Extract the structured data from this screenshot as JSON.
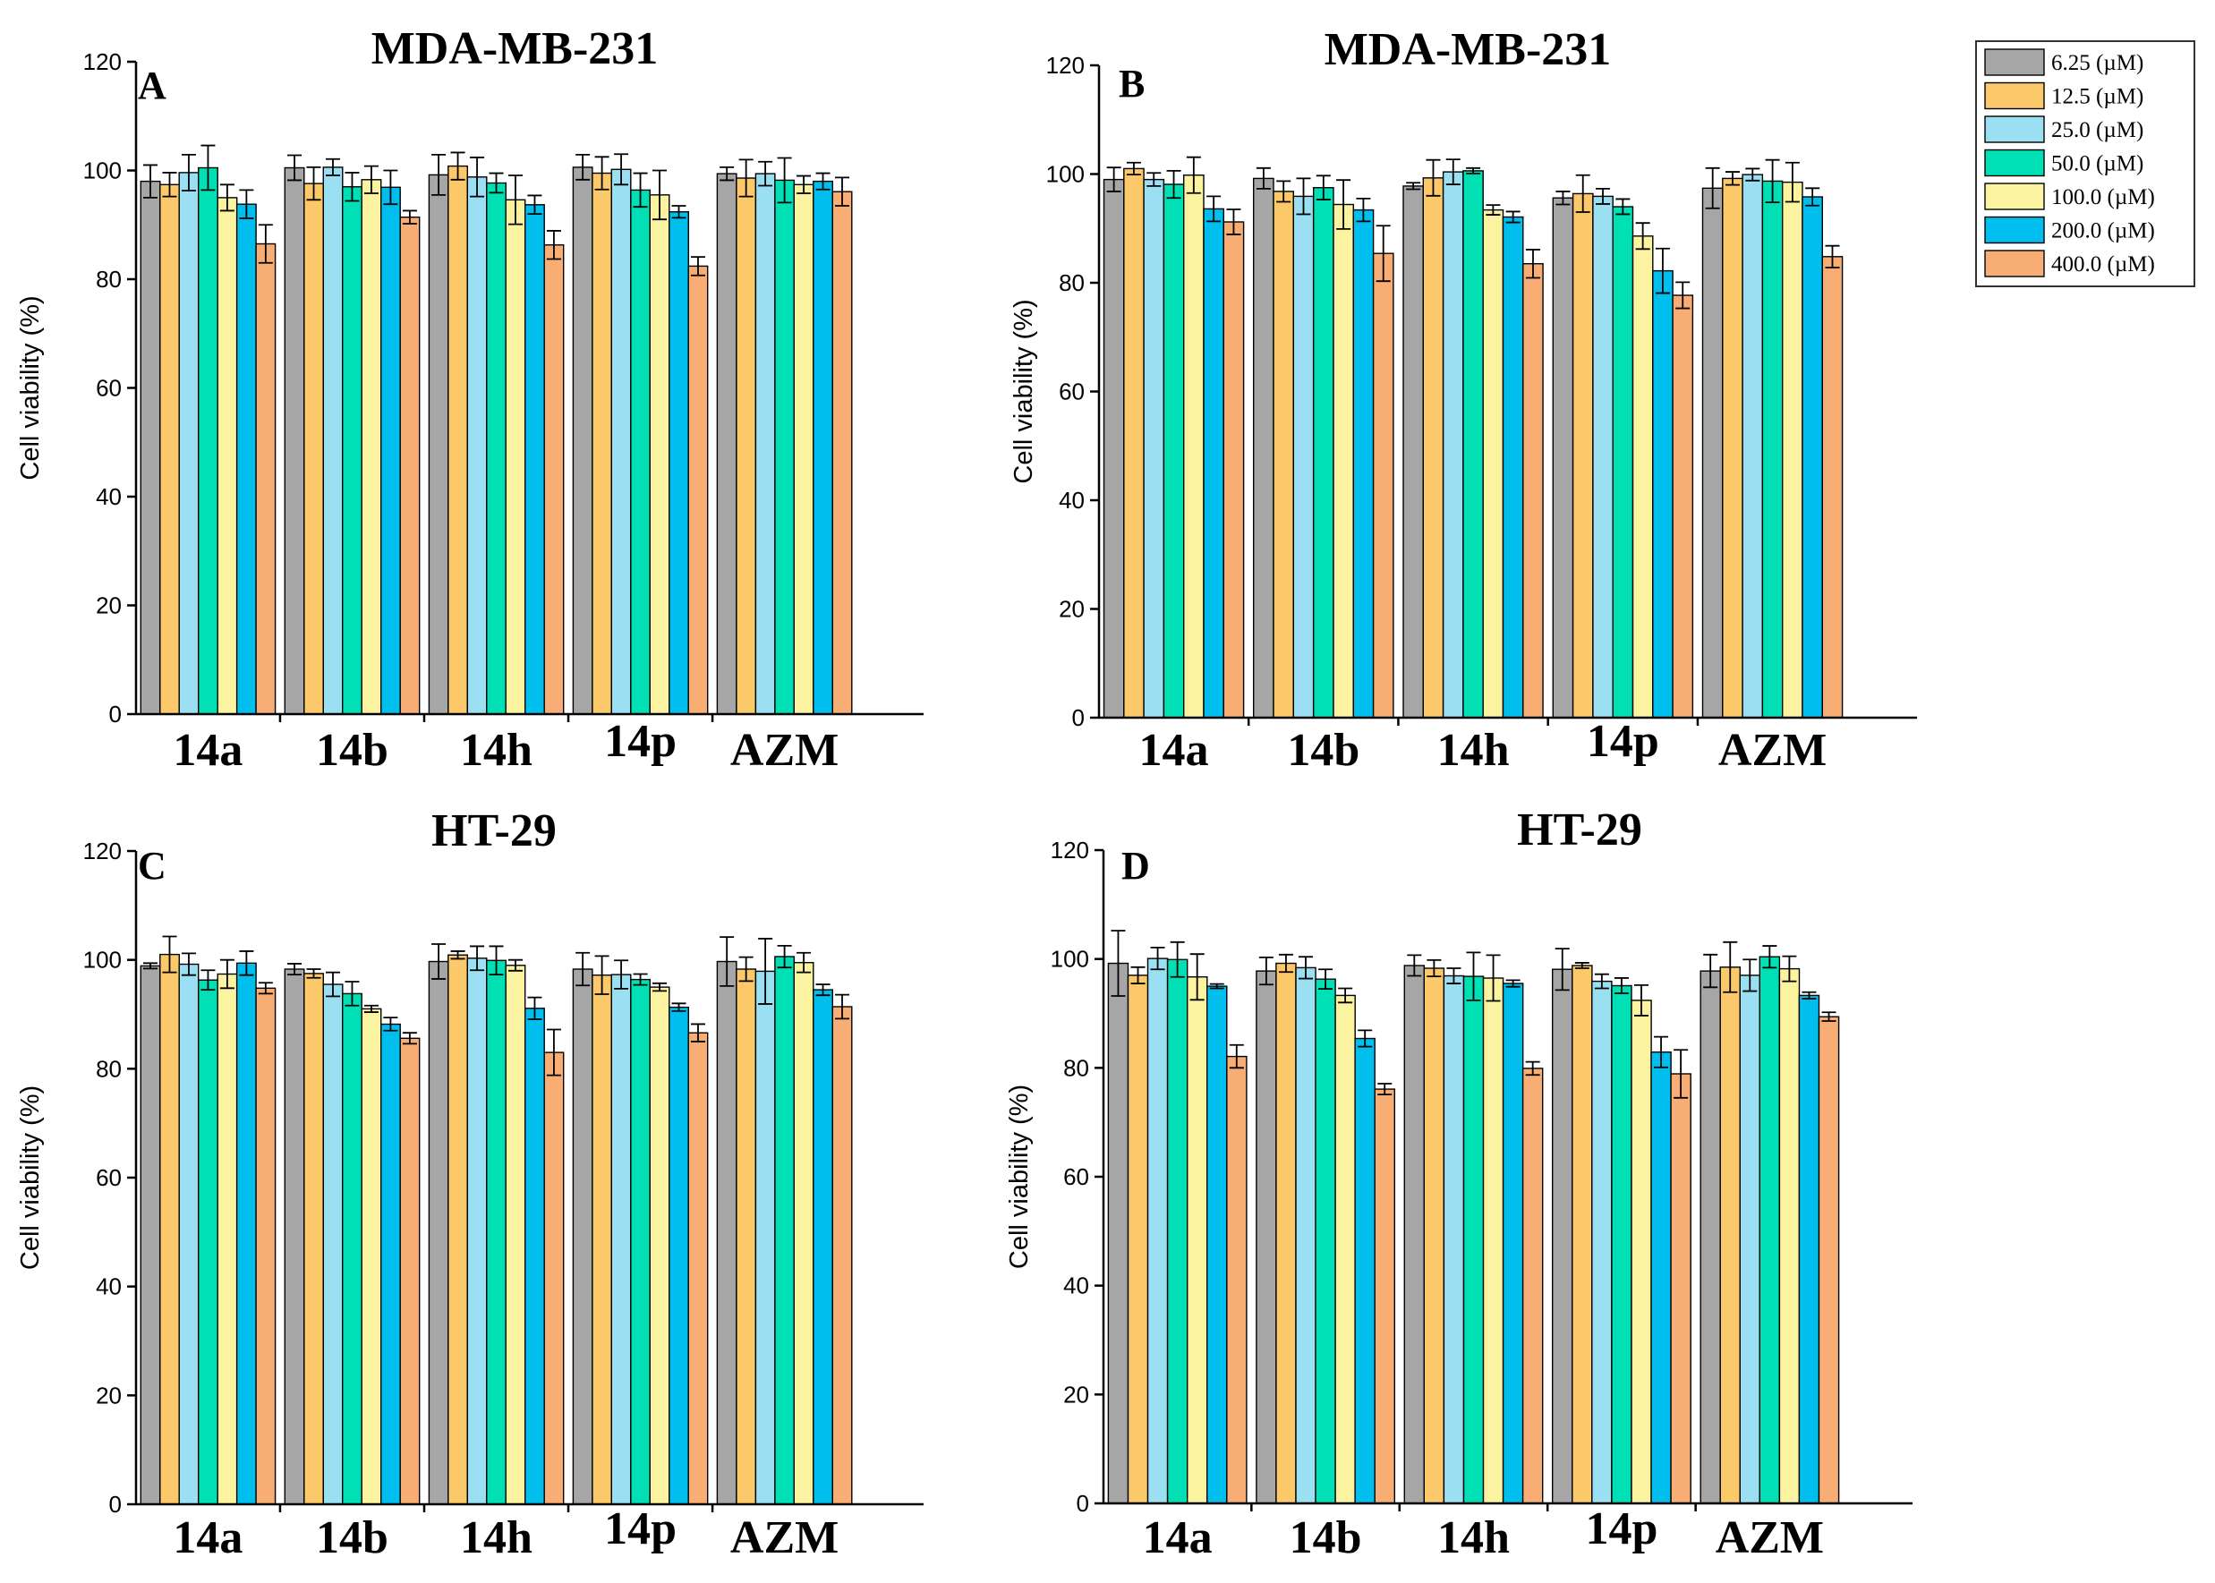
{
  "chart_data": [
    {
      "type": "bar",
      "panel": "A",
      "title": "MDA-MB-231",
      "ylabel": "Cell viability (%)",
      "ylim": [
        0,
        120
      ],
      "yticks": [
        "0",
        "20",
        "40",
        "60",
        "80",
        "100",
        "120"
      ],
      "categories": [
        "14a",
        "14b",
        "14h",
        "14p",
        "AZM"
      ],
      "series": [
        {
          "name": "6.25 (µM)",
          "values": [
            98.0,
            100.5,
            99.2,
            100.6,
            99.4
          ],
          "errors": [
            3.0,
            2.3,
            3.7,
            2.3,
            1.2
          ]
        },
        {
          "name": "12.5 (µM)",
          "values": [
            97.4,
            97.6,
            100.8,
            99.5,
            98.6
          ],
          "errors": [
            2.2,
            3.0,
            2.5,
            3.0,
            3.4
          ]
        },
        {
          "name": "25.0 (µM)",
          "values": [
            99.6,
            100.6,
            98.8,
            100.2,
            99.4
          ],
          "errors": [
            3.3,
            1.5,
            3.6,
            2.8,
            2.2
          ]
        },
        {
          "name": "50.0 (µM)",
          "values": [
            100.5,
            97.0,
            97.7,
            96.4,
            98.2
          ],
          "errors": [
            4.1,
            2.6,
            1.8,
            3.1,
            4.1
          ]
        },
        {
          "name": "100.0 (µM)",
          "values": [
            95.0,
            98.3,
            94.6,
            95.5,
            97.4
          ],
          "errors": [
            2.4,
            2.5,
            4.5,
            4.5,
            1.6
          ]
        },
        {
          "name": "200.0 (µM)",
          "values": [
            93.8,
            96.9,
            93.7,
            92.4,
            98.0
          ],
          "errors": [
            2.6,
            3.1,
            1.7,
            1.1,
            1.5
          ]
        },
        {
          "name": "400.0 (µM)",
          "values": [
            86.5,
            91.4,
            86.3,
            82.4,
            96.1
          ],
          "errors": [
            3.5,
            1.2,
            2.6,
            1.7,
            2.6
          ]
        }
      ]
    },
    {
      "type": "bar",
      "panel": "B",
      "title": "MDA-MB-231",
      "ylabel": "Cell viability (%)",
      "ylim": [
        0,
        120
      ],
      "yticks": [
        "0",
        "20",
        "40",
        "60",
        "80",
        "100",
        "120"
      ],
      "categories": [
        "14a",
        "14b",
        "14h",
        "14p",
        "AZM"
      ],
      "series": [
        {
          "name": "6.25 (µM)",
          "values": [
            99.0,
            99.2,
            97.8,
            95.6,
            97.4
          ],
          "errors": [
            2.2,
            1.9,
            0.6,
            1.2,
            3.7
          ]
        },
        {
          "name": "12.5 (µM)",
          "values": [
            101.0,
            96.8,
            99.3,
            96.4,
            99.2
          ],
          "errors": [
            1.1,
            1.9,
            3.3,
            3.4,
            1.2
          ]
        },
        {
          "name": "25.0 (µM)",
          "values": [
            99.0,
            95.9,
            100.4,
            95.9,
            99.9
          ],
          "errors": [
            1.2,
            3.3,
            2.3,
            1.4,
            1.1
          ]
        },
        {
          "name": "50.0 (µM)",
          "values": [
            98.1,
            97.5,
            100.6,
            94.0,
            98.7
          ],
          "errors": [
            2.5,
            2.2,
            0.5,
            1.4,
            3.9
          ]
        },
        {
          "name": "100.0 (µM)",
          "values": [
            99.8,
            94.4,
            93.4,
            88.6,
            98.5
          ],
          "errors": [
            3.3,
            4.5,
            0.9,
            2.4,
            3.6
          ]
        },
        {
          "name": "200.0 (µM)",
          "values": [
            93.6,
            93.4,
            92.1,
            82.2,
            95.8
          ],
          "errors": [
            2.3,
            2.1,
            1.0,
            4.1,
            1.6
          ]
        },
        {
          "name": "400.0 (µM)",
          "values": [
            91.2,
            85.4,
            83.5,
            77.7,
            84.8
          ],
          "errors": [
            2.3,
            5.1,
            2.6,
            2.4,
            2.0
          ]
        }
      ]
    },
    {
      "type": "bar",
      "panel": "C",
      "title": "HT-29",
      "ylabel": "Cell viability (%)",
      "ylim": [
        0,
        120
      ],
      "yticks": [
        "0",
        "20",
        "40",
        "60",
        "80",
        "100",
        "120"
      ],
      "categories": [
        "14a",
        "14b",
        "14h",
        "14p",
        "AZM"
      ],
      "series": [
        {
          "name": "6.25 (µM)",
          "values": [
            98.9,
            98.3,
            99.7,
            98.3,
            99.7
          ],
          "errors": [
            0.5,
            1.0,
            3.2,
            3.0,
            4.5
          ]
        },
        {
          "name": "12.5 (µM)",
          "values": [
            101.0,
            97.5,
            100.9,
            97.2,
            98.3
          ],
          "errors": [
            3.3,
            0.8,
            0.7,
            3.5,
            2.2
          ]
        },
        {
          "name": "25.0 (µM)",
          "values": [
            99.2,
            95.5,
            100.3,
            97.3,
            97.9
          ],
          "errors": [
            2.0,
            2.2,
            2.2,
            2.6,
            6.0
          ]
        },
        {
          "name": "50.0 (µM)",
          "values": [
            96.3,
            93.8,
            99.9,
            96.4,
            100.6
          ],
          "errors": [
            1.8,
            2.2,
            2.6,
            1.0,
            2.0
          ]
        },
        {
          "name": "100.0 (µM)",
          "values": [
            97.4,
            91.0,
            99.0,
            95.0,
            99.5
          ],
          "errors": [
            2.6,
            0.6,
            1.0,
            0.7,
            1.8
          ]
        },
        {
          "name": "200.0 (µM)",
          "values": [
            99.4,
            88.2,
            91.1,
            91.3,
            94.5
          ],
          "errors": [
            2.2,
            1.2,
            2.0,
            0.7,
            1.0
          ]
        },
        {
          "name": "400.0 (µM)",
          "values": [
            94.8,
            85.6,
            83.0,
            86.6,
            91.4
          ],
          "errors": [
            1.0,
            1.0,
            4.2,
            1.6,
            2.2
          ]
        }
      ]
    },
    {
      "type": "bar",
      "panel": "D",
      "title": "HT-29",
      "ylabel": "Cell viability (%)",
      "ylim": [
        0,
        120
      ],
      "yticks": [
        "0",
        "20",
        "40",
        "60",
        "80",
        "100",
        "120"
      ],
      "categories": [
        "14a",
        "14b",
        "14h",
        "14p",
        "AZM"
      ],
      "series": [
        {
          "name": "6.25 (µM)",
          "values": [
            99.2,
            97.8,
            98.8,
            98.1,
            97.8
          ],
          "errors": [
            6.0,
            2.5,
            1.9,
            3.8,
            3.0
          ]
        },
        {
          "name": "12.5 (µM)",
          "values": [
            97.0,
            99.2,
            98.3,
            98.8,
            98.5
          ],
          "errors": [
            1.5,
            1.6,
            1.5,
            0.5,
            4.6
          ]
        },
        {
          "name": "25.0 (µM)",
          "values": [
            100.1,
            98.4,
            96.9,
            95.9,
            97.0
          ],
          "errors": [
            2.0,
            2.0,
            1.4,
            1.3,
            2.9
          ]
        },
        {
          "name": "50.0 (µM)",
          "values": [
            99.9,
            96.3,
            96.8,
            95.1,
            100.4
          ],
          "errors": [
            3.2,
            1.8,
            4.4,
            1.4,
            2.0
          ]
        },
        {
          "name": "100.0 (µM)",
          "values": [
            96.7,
            93.3,
            96.5,
            92.4,
            98.2
          ],
          "errors": [
            4.2,
            1.3,
            4.2,
            2.8,
            2.3
          ]
        },
        {
          "name": "200.0 (µM)",
          "values": [
            95.0,
            85.4,
            95.5,
            82.9,
            93.3
          ],
          "errors": [
            0.4,
            1.5,
            0.6,
            2.8,
            0.6
          ]
        },
        {
          "name": "400.0 (µM)",
          "values": [
            82.1,
            76.1,
            79.9,
            78.9,
            89.4
          ],
          "errors": [
            2.1,
            1.0,
            1.2,
            4.4,
            0.8
          ]
        }
      ]
    }
  ],
  "legend": {
    "items": [
      {
        "label": "6.25 (µM)",
        "color": "#a6a6a6"
      },
      {
        "label": "12.5 (µM)",
        "color": "#fbc96a"
      },
      {
        "label": "25.0 (µM)",
        "color": "#9bdff2"
      },
      {
        "label": "50.0 (µM)",
        "color": "#00e0b4"
      },
      {
        "label": "100.0 (µM)",
        "color": "#fbf3a0"
      },
      {
        "label": "200.0 (µM)",
        "color": "#00bfee"
      },
      {
        "label": "400.0 (µM)",
        "color": "#f7ad74"
      }
    ]
  }
}
